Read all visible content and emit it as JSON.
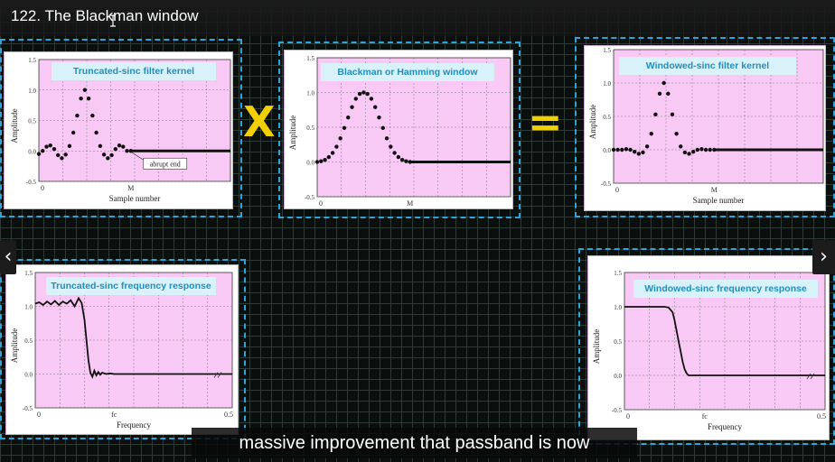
{
  "video": {
    "title": "122. The Blackman window",
    "caption": "massive improvement that passband is now",
    "prev_icon": "chevron-left-icon",
    "next_icon": "chevron-right-icon",
    "prev_glyph": "‹",
    "next_glyph": "›"
  },
  "operators": {
    "multiply": "X",
    "equals": "="
  },
  "colors": {
    "accent": "#2ea4d8",
    "operator": "#f2d000",
    "plot_bg": "#f9c9f5",
    "title_text": "#1f8fbf"
  },
  "chart_data": [
    {
      "id": "p1",
      "type": "scatter",
      "title": "Truncated-sinc filter kernel",
      "xlabel": "Sample number",
      "ylabel": "Amplitude",
      "yticks": [
        "1.5",
        "1.0",
        "0.5",
        "0.0",
        "-0.5"
      ],
      "xticks": [
        "0",
        "M"
      ],
      "annotation": "abrupt end",
      "ylim": [
        -0.5,
        1.5
      ],
      "xlim": [
        0,
        1
      ],
      "grid": true,
      "series": [
        {
          "values": [
            [
              0.0,
              -0.05
            ],
            [
              0.02,
              0.0
            ],
            [
              0.04,
              0.07
            ],
            [
              0.06,
              0.09
            ],
            [
              0.08,
              0.03
            ],
            [
              0.1,
              -0.07
            ],
            [
              0.12,
              -0.12
            ],
            [
              0.14,
              -0.06
            ],
            [
              0.16,
              0.08
            ],
            [
              0.18,
              0.3
            ],
            [
              0.2,
              0.58
            ],
            [
              0.22,
              0.86
            ],
            [
              0.24,
              1.0
            ],
            [
              0.26,
              0.86
            ],
            [
              0.28,
              0.58
            ],
            [
              0.3,
              0.3
            ],
            [
              0.32,
              0.08
            ],
            [
              0.34,
              -0.06
            ],
            [
              0.36,
              -0.12
            ],
            [
              0.38,
              -0.07
            ],
            [
              0.4,
              0.03
            ],
            [
              0.42,
              0.09
            ],
            [
              0.44,
              0.07
            ],
            [
              0.46,
              0.0
            ],
            [
              0.48,
              0.0
            ]
          ]
        }
      ],
      "flat_after": [
        0.48,
        1.0,
        0.0
      ]
    },
    {
      "id": "p2",
      "type": "scatter",
      "title": "Blackman or Hamming window",
      "xlabel": "",
      "ylabel": "Amplitude",
      "yticks": [
        "1.5",
        "1.0",
        "0.5",
        "0.0",
        "-0.5"
      ],
      "xticks": [
        "0",
        "M"
      ],
      "ylim": [
        -0.5,
        1.5
      ],
      "xlim": [
        0,
        1
      ],
      "grid": true,
      "series": [
        {
          "values": [
            [
              0.0,
              0.0
            ],
            [
              0.02,
              0.01
            ],
            [
              0.04,
              0.03
            ],
            [
              0.06,
              0.07
            ],
            [
              0.08,
              0.13
            ],
            [
              0.1,
              0.22
            ],
            [
              0.12,
              0.34
            ],
            [
              0.14,
              0.49
            ],
            [
              0.16,
              0.64
            ],
            [
              0.18,
              0.79
            ],
            [
              0.2,
              0.91
            ],
            [
              0.22,
              0.98
            ],
            [
              0.24,
              1.0
            ],
            [
              0.26,
              0.98
            ],
            [
              0.28,
              0.91
            ],
            [
              0.3,
              0.79
            ],
            [
              0.32,
              0.64
            ],
            [
              0.34,
              0.49
            ],
            [
              0.36,
              0.34
            ],
            [
              0.38,
              0.22
            ],
            [
              0.4,
              0.13
            ],
            [
              0.42,
              0.07
            ],
            [
              0.44,
              0.03
            ],
            [
              0.46,
              0.01
            ],
            [
              0.48,
              0.0
            ]
          ]
        }
      ],
      "flat_after": [
        0.48,
        1.0,
        0.0
      ]
    },
    {
      "id": "p3",
      "type": "scatter",
      "title": "Windowed-sinc filter kernel",
      "xlabel": "Sample number",
      "ylabel": "Amplitude",
      "yticks": [
        "1.5",
        "1.0",
        "0.5",
        "0.0",
        "-0.5"
      ],
      "xticks": [
        "0",
        "M"
      ],
      "ylim": [
        -0.5,
        1.5
      ],
      "xlim": [
        0,
        1
      ],
      "grid": true,
      "series": [
        {
          "values": [
            [
              0.0,
              0.0
            ],
            [
              0.02,
              0.0
            ],
            [
              0.04,
              0.0
            ],
            [
              0.06,
              0.01
            ],
            [
              0.08,
              0.0
            ],
            [
              0.1,
              -0.03
            ],
            [
              0.12,
              -0.06
            ],
            [
              0.14,
              -0.04
            ],
            [
              0.16,
              0.05
            ],
            [
              0.18,
              0.24
            ],
            [
              0.2,
              0.53
            ],
            [
              0.22,
              0.84
            ],
            [
              0.24,
              1.0
            ],
            [
              0.26,
              0.84
            ],
            [
              0.28,
              0.53
            ],
            [
              0.3,
              0.24
            ],
            [
              0.32,
              0.05
            ],
            [
              0.34,
              -0.04
            ],
            [
              0.36,
              -0.06
            ],
            [
              0.38,
              -0.03
            ],
            [
              0.4,
              0.0
            ],
            [
              0.42,
              0.01
            ],
            [
              0.44,
              0.0
            ],
            [
              0.46,
              0.0
            ],
            [
              0.48,
              0.0
            ]
          ]
        }
      ],
      "flat_after": [
        0.48,
        1.0,
        0.0
      ]
    },
    {
      "id": "p4",
      "type": "line",
      "title": "Truncated-sinc frequency response",
      "xlabel": "Frequency",
      "ylabel": "Amplitude",
      "yticks": [
        "1.5",
        "1.0",
        "0.5",
        "0.0",
        "-0.5"
      ],
      "xticks": [
        "0",
        "fc",
        "0.5"
      ],
      "ylim": [
        -0.5,
        1.5
      ],
      "xlim": [
        0,
        0.5
      ],
      "grid": true,
      "series": [
        {
          "values": [
            [
              0.0,
              1.04
            ],
            [
              0.01,
              1.06
            ],
            [
              0.02,
              1.02
            ],
            [
              0.03,
              1.07
            ],
            [
              0.04,
              1.03
            ],
            [
              0.05,
              1.08
            ],
            [
              0.06,
              1.02
            ],
            [
              0.07,
              1.07
            ],
            [
              0.08,
              1.04
            ],
            [
              0.09,
              1.09
            ],
            [
              0.1,
              1.0
            ],
            [
              0.11,
              1.12
            ],
            [
              0.118,
              1.05
            ],
            [
              0.125,
              0.8
            ],
            [
              0.13,
              0.5
            ],
            [
              0.135,
              0.2
            ],
            [
              0.14,
              0.02
            ],
            [
              0.145,
              -0.04
            ],
            [
              0.15,
              0.05
            ],
            [
              0.155,
              -0.02
            ],
            [
              0.16,
              0.03
            ],
            [
              0.165,
              -0.01
            ],
            [
              0.17,
              0.02
            ],
            [
              0.18,
              0.0
            ],
            [
              0.19,
              0.01
            ],
            [
              0.2,
              0.0
            ],
            [
              0.5,
              0.0
            ]
          ]
        }
      ]
    },
    {
      "id": "p5",
      "type": "line",
      "title": "Windowed-sinc frequency response",
      "xlabel": "Frequency",
      "ylabel": "Amplitude",
      "yticks": [
        "1.5",
        "1.0",
        "0.5",
        "0.0",
        "-0.5"
      ],
      "xticks": [
        "0",
        "fc",
        "0.5"
      ],
      "ylim": [
        -0.5,
        1.5
      ],
      "xlim": [
        0,
        0.5
      ],
      "grid": true,
      "series": [
        {
          "values": [
            [
              0.0,
              1.0
            ],
            [
              0.1,
              1.0
            ],
            [
              0.11,
              0.99
            ],
            [
              0.12,
              0.92
            ],
            [
              0.125,
              0.8
            ],
            [
              0.13,
              0.65
            ],
            [
              0.135,
              0.5
            ],
            [
              0.14,
              0.35
            ],
            [
              0.145,
              0.2
            ],
            [
              0.15,
              0.09
            ],
            [
              0.155,
              0.03
            ],
            [
              0.16,
              0.0
            ],
            [
              0.5,
              0.0
            ]
          ]
        }
      ]
    }
  ]
}
